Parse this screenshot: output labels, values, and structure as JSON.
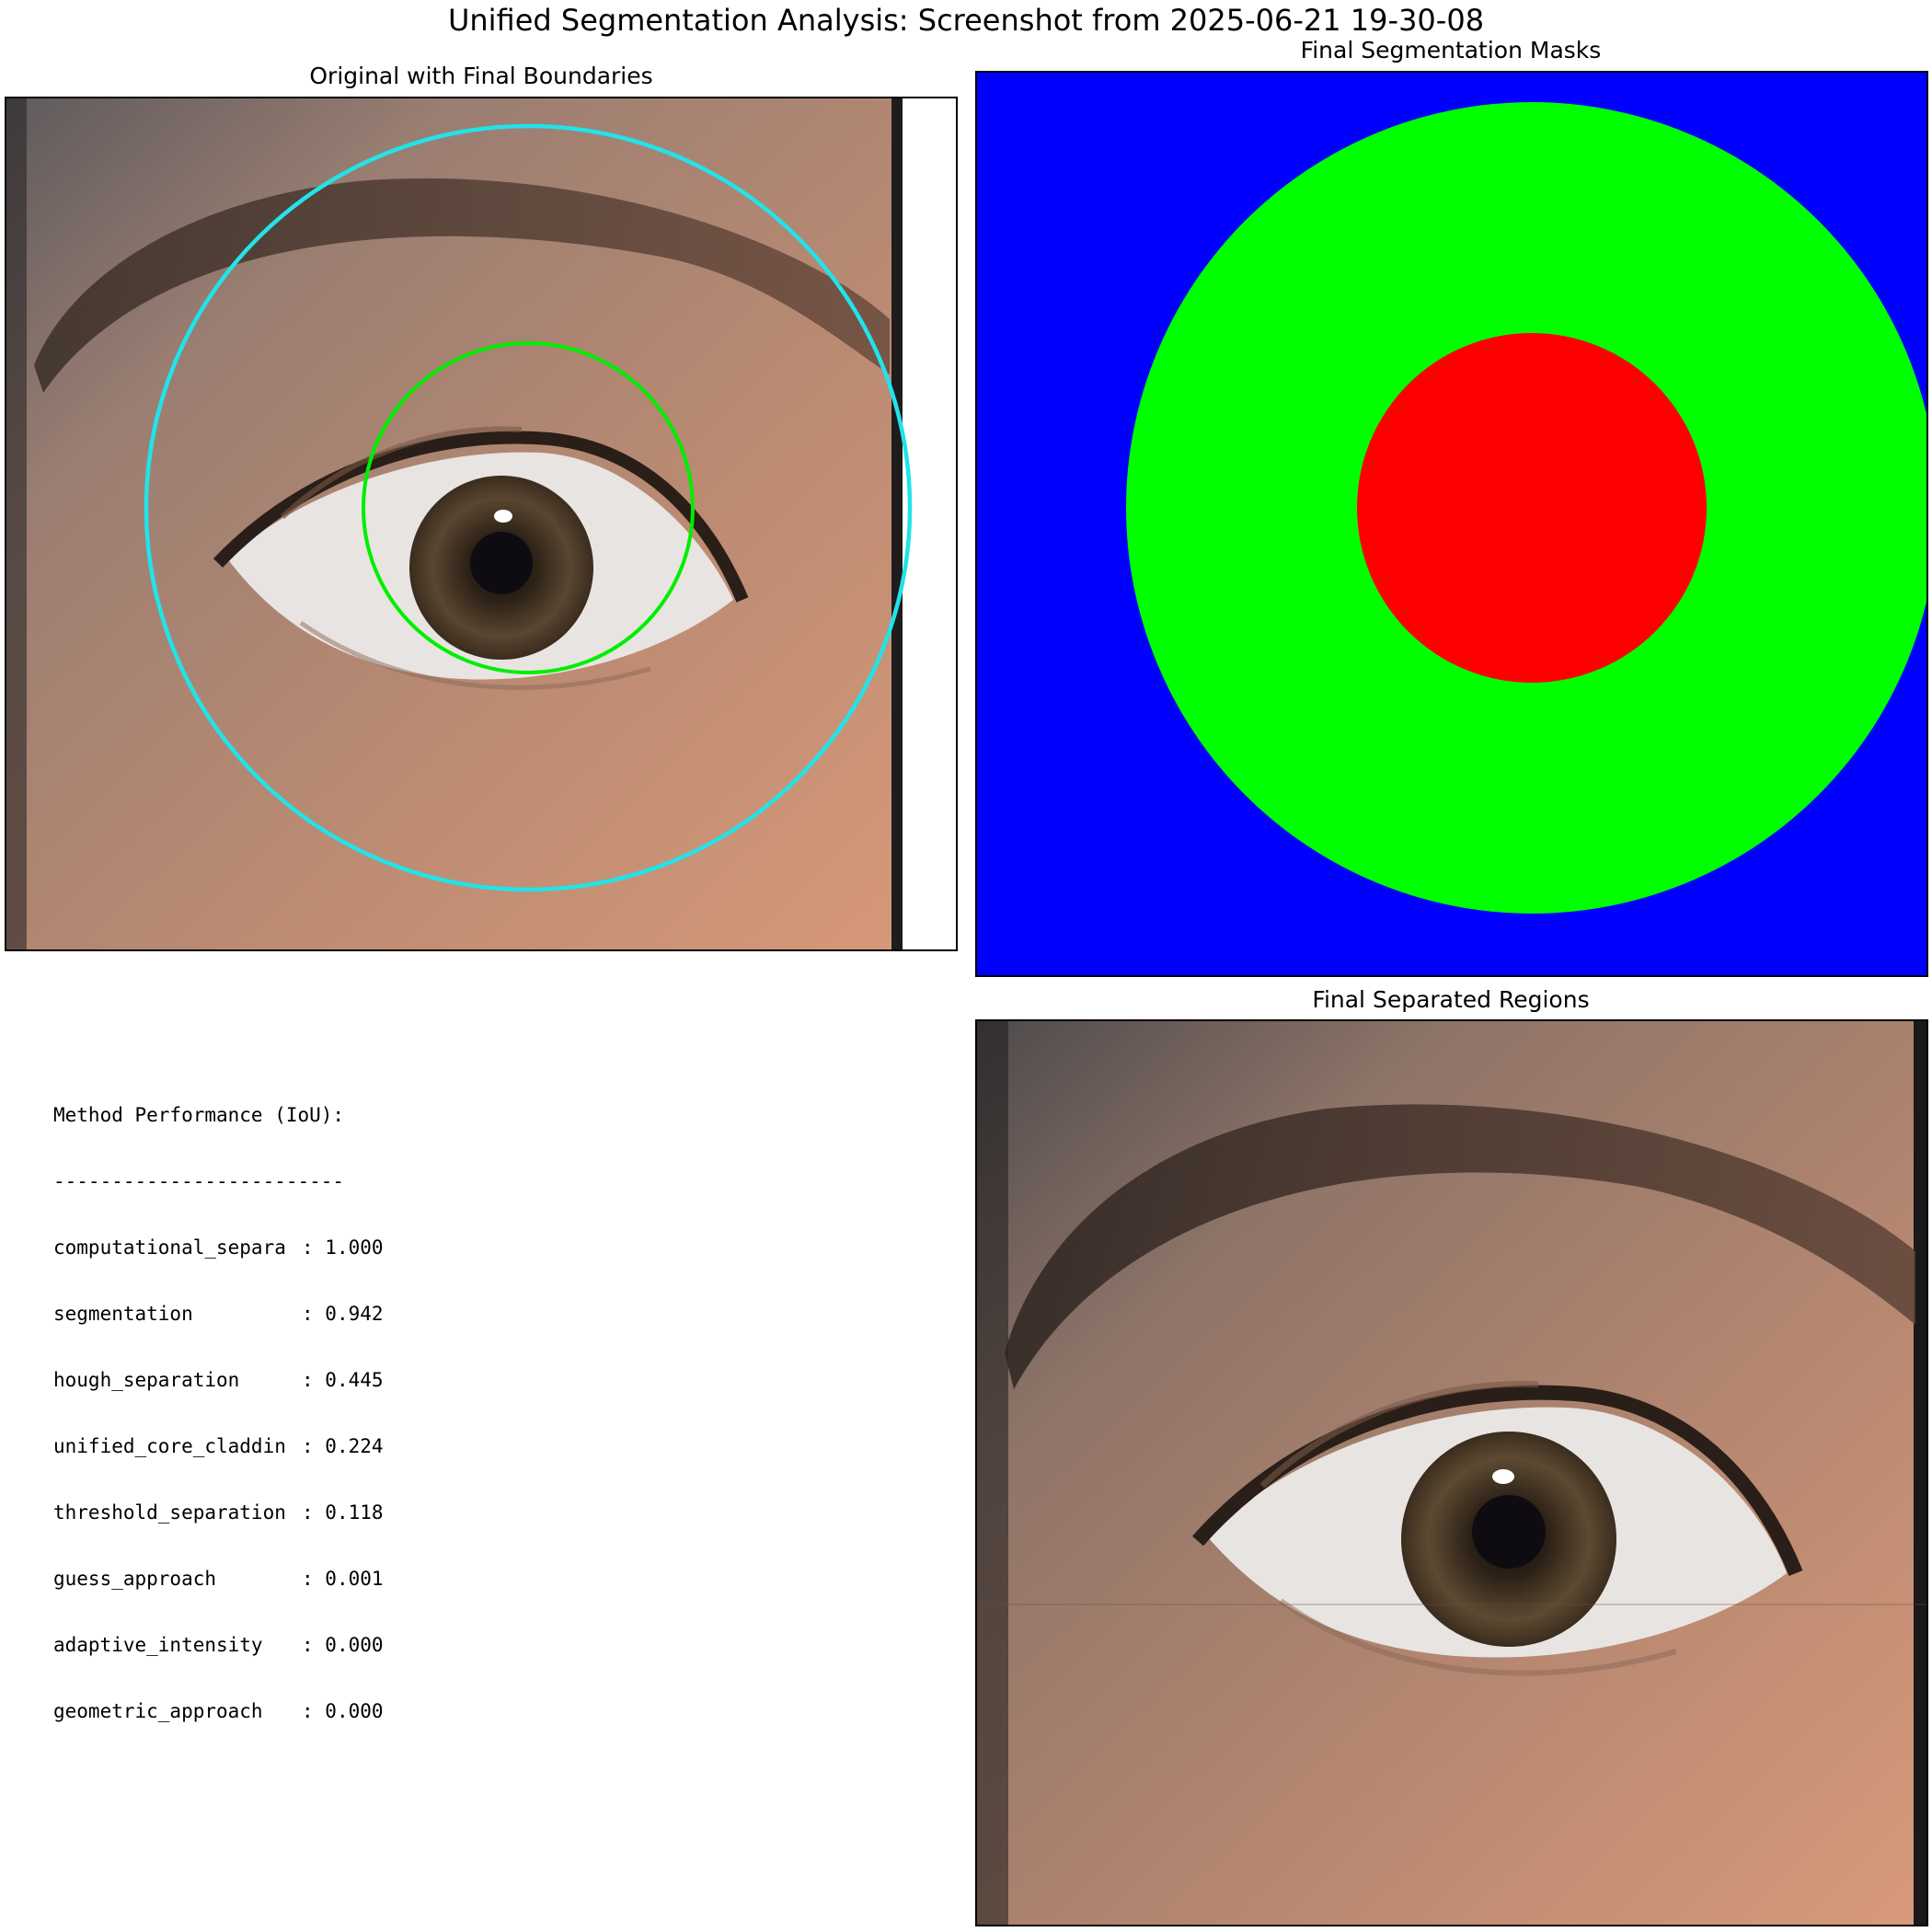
{
  "figure": {
    "title": "Unified Segmentation Analysis: Screenshot from 2025-06-21 19-30-08"
  },
  "panels": {
    "original": {
      "title": "Original with Final Boundaries",
      "boundary_colors": {
        "outer": "#22e3ea",
        "inner": "#00ee00"
      }
    },
    "masks": {
      "title": "Final Segmentation Masks",
      "colors": {
        "background": "#0000ff",
        "cladding": "#00ff00",
        "core": "#ff0000"
      }
    },
    "separated": {
      "title": "Final Separated Regions"
    }
  },
  "method_performance": {
    "heading": "Method Performance (IoU):",
    "rule": "-------------------------",
    "rows": [
      {
        "name": "computational_separa",
        "value": "1.000"
      },
      {
        "name": "segmentation",
        "value": "0.942"
      },
      {
        "name": "hough_separation",
        "value": "0.445"
      },
      {
        "name": "unified_core_claddin",
        "value": "0.224"
      },
      {
        "name": "threshold_separation",
        "value": "0.118"
      },
      {
        "name": "guess_approach",
        "value": "0.001"
      },
      {
        "name": "adaptive_intensity",
        "value": "0.000"
      },
      {
        "name": "geometric_approach",
        "value": "0.000"
      }
    ]
  }
}
